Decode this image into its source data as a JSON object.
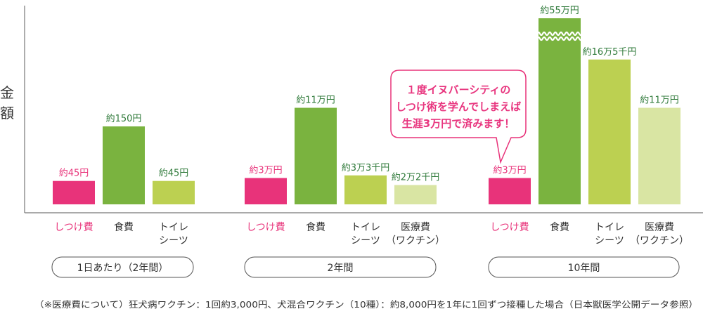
{
  "chart_data": {
    "type": "bar",
    "ylabel_chars": [
      "金",
      "額"
    ],
    "colors": {
      "しつけ費": "#e8337a",
      "食費": "#7ab33f",
      "トイレシーツ": "#bcd051",
      "医療費": "#d9e5a3",
      "pink_text": "#e8337a",
      "green_text": "#2f7a3a",
      "axis": "#777777"
    },
    "groups": [
      {
        "label": "1日あたり（2年間）",
        "bars": [
          {
            "category": "しつけ費",
            "lines": [
              "しつけ費"
            ],
            "value": 45,
            "label": "約45円"
          },
          {
            "category": "食費",
            "lines": [
              "食費"
            ],
            "value": 150,
            "label": "約150円"
          },
          {
            "category": "トイレシーツ",
            "lines": [
              "トイレ",
              "シーツ"
            ],
            "value": 45,
            "label": "約45円"
          }
        ]
      },
      {
        "label": "2年間",
        "bars": [
          {
            "category": "しつけ費",
            "lines": [
              "しつけ費"
            ],
            "value": 30000,
            "label": "約3万円"
          },
          {
            "category": "食費",
            "lines": [
              "食費"
            ],
            "value": 110000,
            "label": "約11万円"
          },
          {
            "category": "トイレシーツ",
            "lines": [
              "トイレ",
              "シーツ"
            ],
            "value": 33000,
            "label": "約3万3千円"
          },
          {
            "category": "医療費",
            "lines": [
              "医療費",
              "（ワクチン）"
            ],
            "value": 22000,
            "label": "約2万2千円"
          }
        ]
      },
      {
        "label": "10年間",
        "bars": [
          {
            "category": "しつけ費",
            "lines": [
              "しつけ費"
            ],
            "value": 30000,
            "label": "約3万円"
          },
          {
            "category": "食費",
            "lines": [
              "食費"
            ],
            "value": 550000,
            "label": "約55万円",
            "broken": true
          },
          {
            "category": "トイレシーツ",
            "lines": [
              "トイレ",
              "シーツ"
            ],
            "value": 165000,
            "label": "約16万5千円"
          },
          {
            "category": "医療費",
            "lines": [
              "医療費",
              "（ワクチン）"
            ],
            "value": 110000,
            "label": "約11万円"
          }
        ]
      }
    ],
    "callout": {
      "lines": [
        "１度イヌバーシティの",
        "しつけ術を学んでしまえば",
        "生涯3万円で済みます！"
      ]
    },
    "footnote": "（※医療費について）狂犬病ワクチン：1回約3,000円、犬混合ワクチン（10種）：約8,000円を1年に1回ずつ接種した場合（日本獣医学公開データ参照）"
  }
}
